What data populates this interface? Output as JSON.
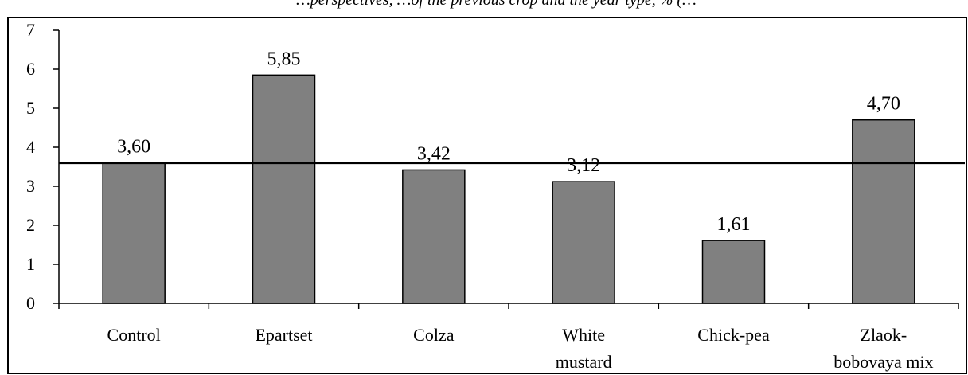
{
  "header": {
    "caption": "…perspectives, …of the previous crop and the year type, % (…"
  },
  "chart_data": {
    "type": "bar",
    "title": "",
    "xlabel": "",
    "ylabel": "",
    "ylim": [
      0,
      7
    ],
    "yticks": [
      0,
      1,
      2,
      3,
      4,
      5,
      6,
      7
    ],
    "grid": false,
    "legend": "none",
    "categories": [
      [
        "Control"
      ],
      [
        "Epartset"
      ],
      [
        "Colza"
      ],
      [
        "White",
        "mustard"
      ],
      [
        "Chick-pea"
      ],
      [
        "Zlaok-",
        "bobovaya mix"
      ]
    ],
    "values": [
      3.6,
      5.85,
      3.42,
      3.12,
      1.61,
      4.7
    ],
    "data_labels": [
      "3,60",
      "5,85",
      "3,42",
      "3,12",
      "1,61",
      "4,70"
    ],
    "reference_line": 3.6,
    "bar_color": "#808080",
    "bar_edge_color": "#000000"
  }
}
